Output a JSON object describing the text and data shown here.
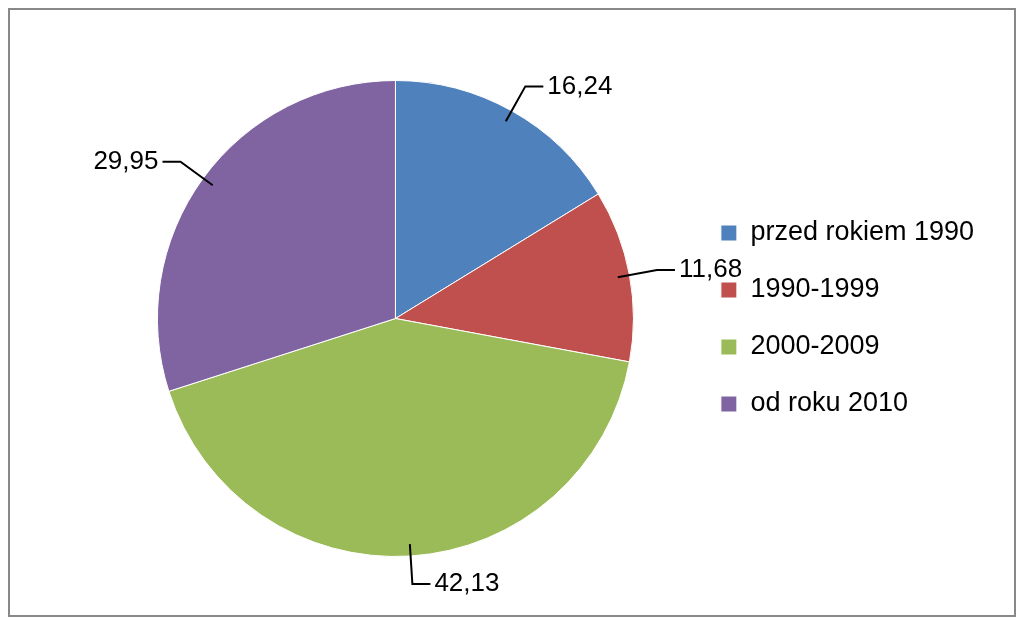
{
  "chart_data": {
    "type": "pie",
    "categories": [
      "przed rokiem 1990",
      "1990-1999",
      "2000-2009",
      "od roku 2010"
    ],
    "values": [
      16.24,
      11.68,
      42.13,
      29.95
    ],
    "colors": [
      "#4f81bd",
      "#c0504d",
      "#9bbb59",
      "#8064a2"
    ],
    "value_labels": [
      "16,24",
      "11,68",
      "42,13",
      "29,95"
    ],
    "legend": "right"
  }
}
